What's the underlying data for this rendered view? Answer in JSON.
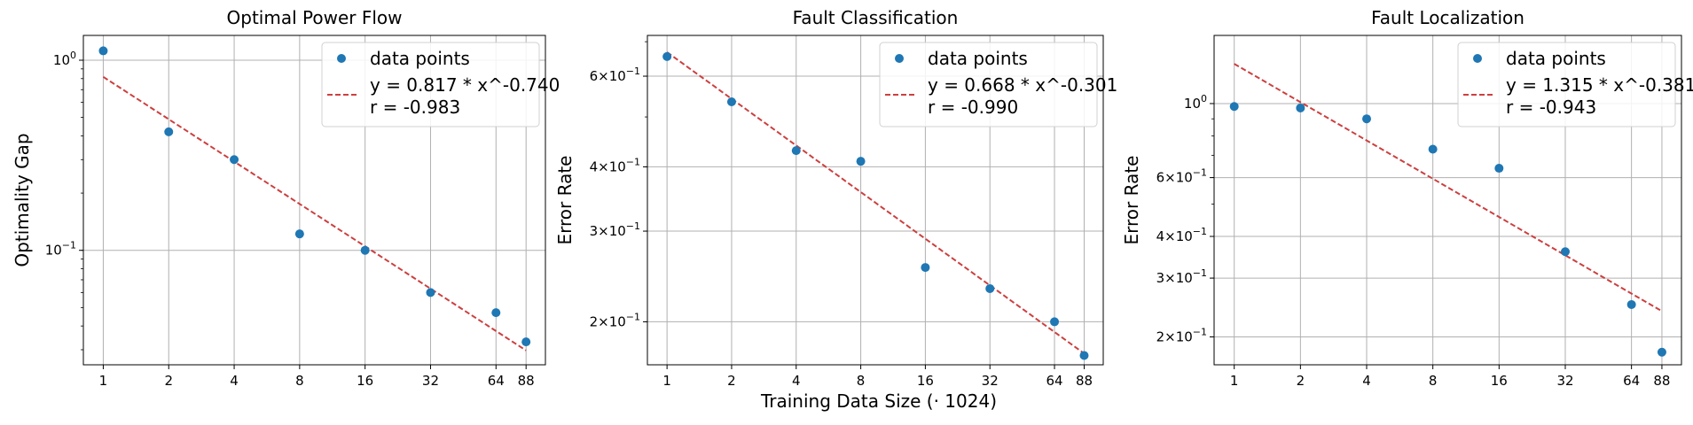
{
  "figure": {
    "shared_xlabel": "Training Data Size (· 1024)"
  },
  "chart_data": [
    {
      "type": "scatter",
      "title": "Optimal Power Flow",
      "ylabel": "Optimality Gap",
      "xscale": "log2",
      "yscale": "log10",
      "xlim": [
        0.81,
        108
      ],
      "ylim": [
        0.025,
        1.35
      ],
      "xticks": [
        1,
        2,
        4,
        8,
        16,
        32,
        64,
        88
      ],
      "yticks": [
        {
          "v": 1.0,
          "base": "10",
          "exp": "0"
        },
        {
          "v": 0.1,
          "base": "10",
          "exp": "−1"
        }
      ],
      "grid": true,
      "legend": {
        "position": "top-right",
        "points_label": "data points",
        "fit_label_line1": "y = 0.817 * x^-0.740",
        "fit_label_line2": "r = -0.983"
      },
      "points": [
        {
          "x": 1,
          "y": 1.12
        },
        {
          "x": 2,
          "y": 0.42
        },
        {
          "x": 4,
          "y": 0.3
        },
        {
          "x": 8,
          "y": 0.122
        },
        {
          "x": 16,
          "y": 0.1
        },
        {
          "x": 32,
          "y": 0.06
        },
        {
          "x": 64,
          "y": 0.047
        },
        {
          "x": 88,
          "y": 0.033
        }
      ],
      "fit": {
        "a": 0.817,
        "b": -0.74
      },
      "colors": {
        "points": "#1f77b4",
        "fit": "#cd3f3f"
      }
    },
    {
      "type": "scatter",
      "title": "Fault Classification",
      "ylabel": "Error Rate",
      "xscale": "log2",
      "yscale": "log10",
      "xlim": [
        0.81,
        108
      ],
      "ylim": [
        0.165,
        0.72
      ],
      "xticks": [
        1,
        2,
        4,
        8,
        16,
        32,
        64,
        88
      ],
      "yticks": [
        {
          "v": 0.6,
          "base": "6×10",
          "exp": "−1"
        },
        {
          "v": 0.4,
          "base": "4×10",
          "exp": "−1"
        },
        {
          "v": 0.3,
          "base": "3×10",
          "exp": "−1"
        },
        {
          "v": 0.2,
          "base": "2×10",
          "exp": "−1"
        }
      ],
      "grid": true,
      "legend": {
        "position": "top-right",
        "points_label": "data points",
        "fit_label_line1": "y = 0.668 * x^-0.301",
        "fit_label_line2": "r = -0.990"
      },
      "points": [
        {
          "x": 1,
          "y": 0.655
        },
        {
          "x": 2,
          "y": 0.535
        },
        {
          "x": 4,
          "y": 0.43
        },
        {
          "x": 8,
          "y": 0.41
        },
        {
          "x": 16,
          "y": 0.255
        },
        {
          "x": 32,
          "y": 0.232
        },
        {
          "x": 64,
          "y": 0.2
        },
        {
          "x": 88,
          "y": 0.172
        }
      ],
      "fit": {
        "a": 0.668,
        "b": -0.301
      },
      "colors": {
        "points": "#1f77b4",
        "fit": "#cd3f3f"
      }
    },
    {
      "type": "scatter",
      "title": "Fault Localization",
      "ylabel": "Error Rate",
      "xscale": "log2",
      "yscale": "log10",
      "xlim": [
        0.81,
        108
      ],
      "ylim": [
        0.165,
        1.6
      ],
      "xticks": [
        1,
        2,
        4,
        8,
        16,
        32,
        64,
        88
      ],
      "yticks": [
        {
          "v": 1.0,
          "base": "10",
          "exp": "0"
        },
        {
          "v": 0.6,
          "base": "6×10",
          "exp": "−1"
        },
        {
          "v": 0.4,
          "base": "4×10",
          "exp": "−1"
        },
        {
          "v": 0.3,
          "base": "3×10",
          "exp": "−1"
        },
        {
          "v": 0.2,
          "base": "2×10",
          "exp": "−1"
        }
      ],
      "grid": true,
      "legend": {
        "position": "top-right",
        "points_label": "data points",
        "fit_label_line1": "y = 1.315 * x^-0.381",
        "fit_label_line2": "r = -0.943"
      },
      "points": [
        {
          "x": 1,
          "y": 0.98
        },
        {
          "x": 2,
          "y": 0.97
        },
        {
          "x": 4,
          "y": 0.9
        },
        {
          "x": 8,
          "y": 0.73
        },
        {
          "x": 16,
          "y": 0.64
        },
        {
          "x": 32,
          "y": 0.36
        },
        {
          "x": 64,
          "y": 0.25
        },
        {
          "x": 88,
          "y": 0.18
        }
      ],
      "fit": {
        "a": 1.315,
        "b": -0.381
      },
      "colors": {
        "points": "#1f77b4",
        "fit": "#cd3f3f"
      }
    }
  ]
}
